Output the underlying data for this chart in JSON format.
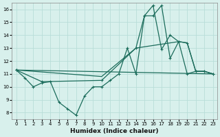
{
  "xlabel": "Humidex (Indice chaleur)",
  "bg_color": "#d8f0ec",
  "grid_color": "#b8ddd8",
  "line_color": "#1a6b5a",
  "xlim": [
    -0.5,
    23.5
  ],
  "ylim": [
    7.5,
    16.5
  ],
  "xticks": [
    0,
    1,
    2,
    3,
    4,
    5,
    6,
    7,
    8,
    9,
    10,
    11,
    12,
    13,
    14,
    15,
    16,
    17,
    18,
    19,
    20,
    21,
    22,
    23
  ],
  "yticks": [
    8,
    9,
    10,
    11,
    12,
    13,
    14,
    15,
    16
  ],
  "line1_x": [
    0,
    1,
    2,
    3,
    4,
    5,
    6,
    7,
    8,
    9,
    10,
    11,
    12,
    13,
    14,
    15,
    16,
    17,
    18,
    19,
    20,
    21,
    22,
    23
  ],
  "line1_y": [
    11.3,
    10.7,
    10.0,
    10.3,
    10.4,
    8.8,
    8.3,
    7.8,
    9.3,
    10.0,
    10.0,
    10.5,
    11.0,
    13.0,
    11.0,
    15.5,
    15.5,
    16.3,
    12.2,
    13.5,
    11.0,
    11.2,
    11.2,
    11.0
  ],
  "line2_x": [
    0,
    3,
    10,
    14,
    15,
    16,
    17,
    18,
    19,
    20,
    21,
    22,
    23
  ],
  "line2_y": [
    11.3,
    10.4,
    10.5,
    13.0,
    15.5,
    16.3,
    12.9,
    14.0,
    13.5,
    13.4,
    11.2,
    11.2,
    11.0
  ],
  "line3_x": [
    0,
    23
  ],
  "line3_y": [
    11.3,
    11.0
  ],
  "line4_x": [
    0,
    10,
    14,
    19,
    20,
    21,
    22,
    23
  ],
  "line4_y": [
    11.3,
    10.8,
    13.0,
    13.5,
    13.4,
    11.2,
    11.2,
    11.0
  ]
}
